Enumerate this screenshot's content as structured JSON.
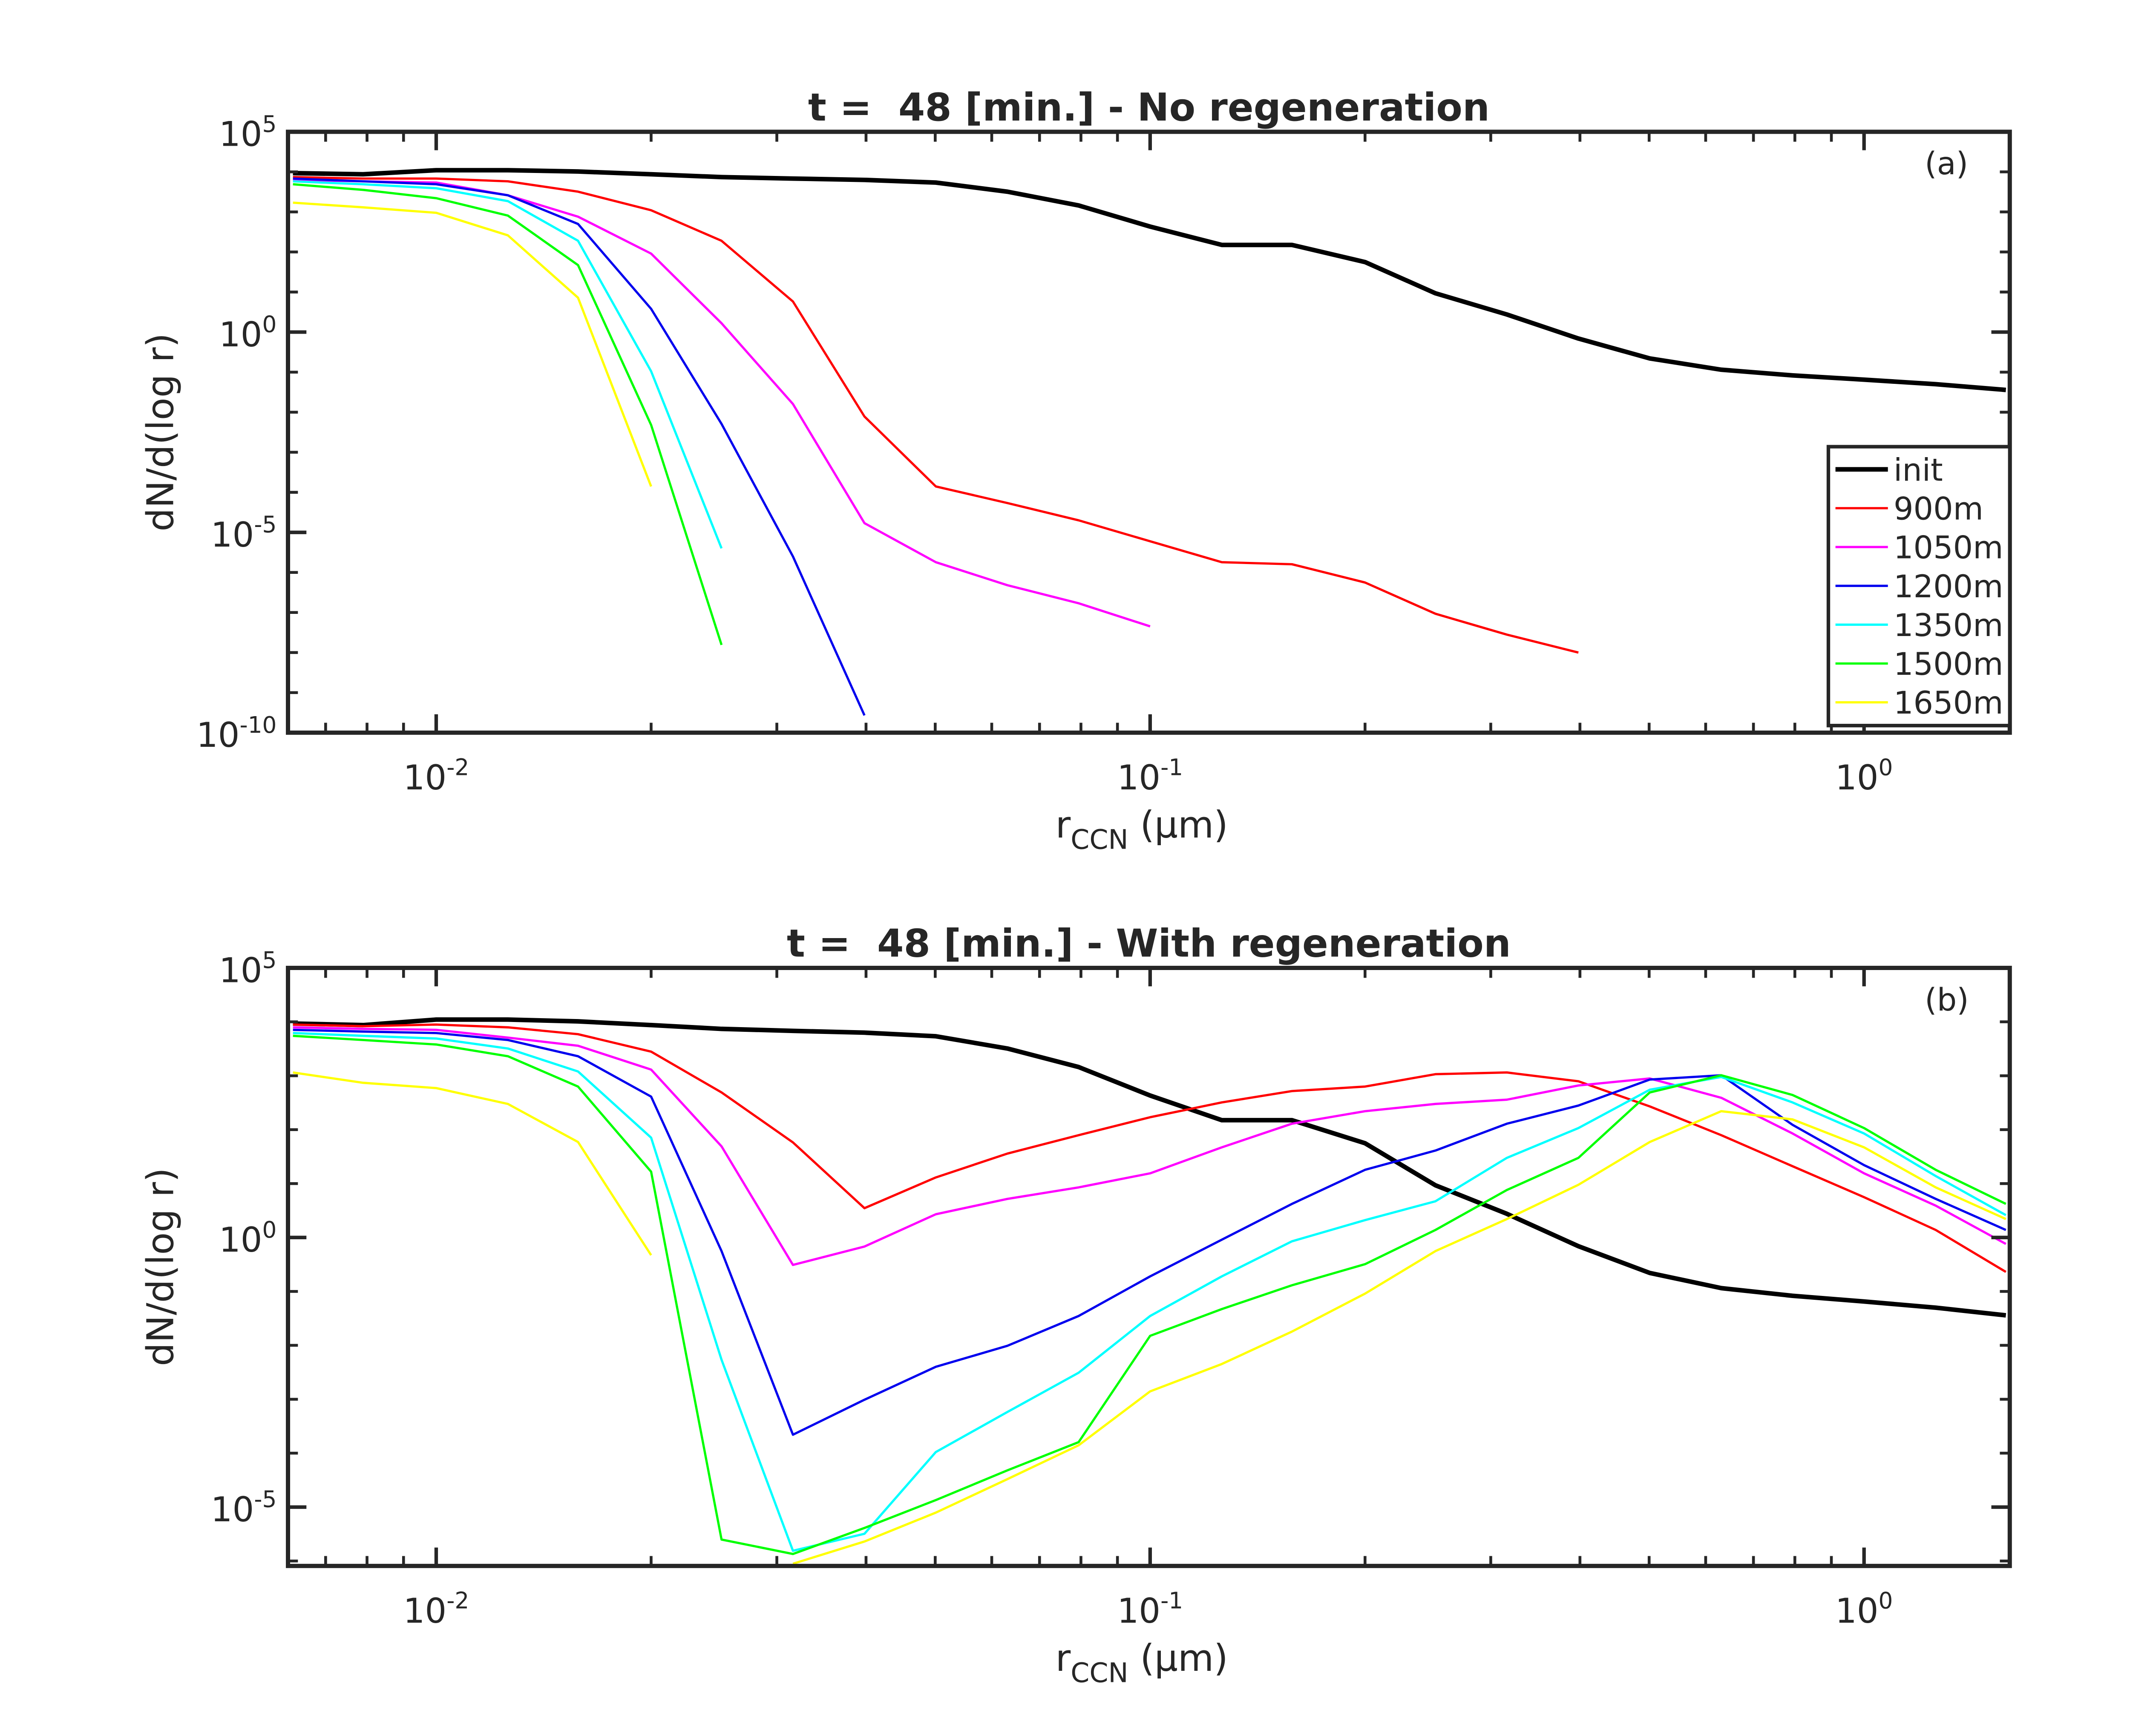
{
  "chart_data": [
    {
      "type": "line",
      "title": "t =  48 [min.] - No regeneration",
      "panel": "(a)",
      "xlabel": {
        "main": "r",
        "sub": "CCN",
        "rest": " (μm)"
      },
      "ylabel": "dN/d(log r)",
      "xscale": "log",
      "yscale": "log",
      "legend": "lower right",
      "xlim": [
        0.0062,
        1.6
      ],
      "xticks": [
        {
          "value": 0.01,
          "label": "10^-2"
        },
        {
          "value": 0.1,
          "label": "10^-1"
        },
        {
          "value": 1,
          "label": "10^0"
        }
      ],
      "ylim": [
        1e-10,
        100000
      ],
      "yticks": [
        {
          "value": 1e-10,
          "label": "10^-10"
        },
        {
          "value": 1e-05,
          "label": "10^-5"
        },
        {
          "value": 1,
          "label": "10^0"
        },
        {
          "value": 100000,
          "label": "10^5"
        }
      ],
      "x": [
        0.0063,
        0.0079,
        0.01,
        0.0126,
        0.0158,
        0.02,
        0.0251,
        0.0316,
        0.0398,
        0.0501,
        0.0631,
        0.0794,
        0.1,
        0.126,
        0.158,
        0.2,
        0.251,
        0.316,
        0.398,
        0.501,
        0.631,
        0.794,
        1,
        1.26,
        1.58
      ],
      "series": [
        {
          "name": "init",
          "color": "#000000",
          "values": [
            9300,
            8700,
            11000,
            11000,
            10200,
            8700,
            7400,
            6800,
            6300,
            5400,
            3200,
            1450,
            430,
            150,
            150,
            56,
            9.3,
            2.75,
            0.69,
            0.22,
            0.115,
            0.083,
            0.065,
            0.05,
            0.036
          ]
        },
        {
          "name": "900m",
          "color": "#ff0000",
          "values": [
            7400,
            6800,
            6800,
            5800,
            3200,
            1100,
            190,
            5.8,
            0.0078,
            0.00014,
            5.4e-05,
            2e-05,
            6e-06,
            1.8e-06,
            1.6e-06,
            5.6e-07,
            9.3e-08,
            2.8e-08,
            1e-08,
            null,
            null,
            null,
            null,
            null,
            null
          ]
        },
        {
          "name": "1050m",
          "color": "#ff00ff",
          "values": [
            6300,
            5800,
            5400,
            2600,
            760,
            91,
            1.66,
            0.016,
            1.7e-05,
            1.8e-06,
            4.8e-07,
            1.7e-07,
            4.5e-08,
            null,
            null,
            null,
            null,
            null,
            null,
            null,
            null,
            null,
            null,
            null,
            null
          ]
        },
        {
          "name": "1200m",
          "color": "#0000ee",
          "values": [
            6800,
            5800,
            4900,
            2600,
            500,
            3.8,
            0.0051,
            2.5e-06,
            2.7e-10,
            null,
            null,
            null,
            null,
            null,
            null,
            null,
            null,
            null,
            null,
            null,
            null,
            null,
            null,
            null,
            null
          ]
        },
        {
          "name": "1350m",
          "color": "#00ffff",
          "values": [
            5800,
            4900,
            3900,
            1860,
            190,
            0.105,
            4e-06,
            null,
            null,
            null,
            null,
            null,
            null,
            null,
            null,
            null,
            null,
            null,
            null,
            null,
            null,
            null,
            null,
            null,
            null
          ]
        },
        {
          "name": "1500m",
          "color": "#00ff00",
          "values": [
            4900,
            3550,
            2200,
            810,
            47,
            0.0048,
            1.55e-08,
            null,
            null,
            null,
            null,
            null,
            null,
            null,
            null,
            null,
            null,
            null,
            null,
            null,
            null,
            null,
            null,
            null,
            null
          ]
        },
        {
          "name": "1650m",
          "color": "#ffff00",
          "values": [
            1700,
            1300,
            950,
            260,
            7.2,
            0.00014,
            null,
            null,
            null,
            null,
            null,
            null,
            null,
            null,
            null,
            null,
            null,
            null,
            null,
            null,
            null,
            null,
            null,
            null,
            null
          ]
        }
      ]
    },
    {
      "type": "line",
      "title": "t =  48 [min.] - With regeneration",
      "panel": "(b)",
      "xlabel": {
        "main": "r",
        "sub": "CCN",
        "rest": " (μm)"
      },
      "ylabel": "dN/d(log r)",
      "xscale": "log",
      "yscale": "log",
      "xlim": [
        0.0062,
        1.6
      ],
      "xticks": [
        {
          "value": 0.01,
          "label": "10^-2"
        },
        {
          "value": 0.1,
          "label": "10^-1"
        },
        {
          "value": 1,
          "label": "10^0"
        }
      ],
      "ylim": [
        8.1e-07,
        100000
      ],
      "yticks": [
        {
          "value": 1e-05,
          "label": "10^-5"
        },
        {
          "value": 1,
          "label": "10^0"
        },
        {
          "value": 100000,
          "label": "10^5"
        }
      ],
      "x": [
        0.0063,
        0.0079,
        0.01,
        0.0126,
        0.0158,
        0.02,
        0.0251,
        0.0316,
        0.0398,
        0.0501,
        0.0631,
        0.0794,
        0.1,
        0.126,
        0.158,
        0.2,
        0.251,
        0.316,
        0.398,
        0.501,
        0.631,
        0.794,
        1,
        1.26,
        1.58
      ],
      "series": [
        {
          "name": "init",
          "color": "#000000",
          "values": [
            9300,
            8700,
            11000,
            11000,
            10200,
            8700,
            7400,
            6800,
            6300,
            5400,
            3200,
            1450,
            430,
            150,
            150,
            56,
            9.3,
            2.75,
            0.69,
            0.22,
            0.115,
            0.083,
            0.065,
            0.05,
            0.036
          ]
        },
        {
          "name": "900m",
          "color": "#ff0000",
          "values": [
            8900,
            8300,
            8900,
            7900,
            5900,
            2800,
            490,
            58,
            3.5,
            13,
            36,
            79,
            170,
            320,
            520,
            630,
            1070,
            1150,
            790,
            270,
            79,
            21,
            5.6,
            1.38,
            0.23
          ]
        },
        {
          "name": "1050m",
          "color": "#ff00ff",
          "values": [
            7900,
            7400,
            7100,
            5100,
            3600,
            1300,
            49,
            0.31,
            0.68,
            2.7,
            5.2,
            8.5,
            15.5,
            47,
            129,
            220,
            300,
            360,
            660,
            890,
            390,
            85,
            15.5,
            3.9,
            0.76
          ]
        },
        {
          "name": "1200m",
          "color": "#0000ee",
          "values": [
            7100,
            6600,
            6200,
            4600,
            2300,
            410,
            0.56,
            0.00022,
            0.00098,
            0.004,
            0.0098,
            0.035,
            0.19,
            0.91,
            4.2,
            18,
            41,
            129,
            280,
            850,
            1020,
            123,
            22,
            5.2,
            1.38
          ]
        },
        {
          "name": "1350m",
          "color": "#00ffff",
          "values": [
            6200,
            5500,
            4900,
            3200,
            1200,
            71,
            0.0054,
            1.55e-06,
            3.2e-06,
            0.000105,
            0.00058,
            0.0031,
            0.035,
            0.19,
            0.85,
            2.1,
            4.7,
            30,
            107,
            550,
            950,
            320,
            85,
            13.8,
            2.6
          ]
        },
        {
          "name": "1500m",
          "color": "#00ff00",
          "values": [
            5500,
            4600,
            3800,
            2300,
            630,
            16.6,
            2.5e-06,
            1.35e-06,
            4.1e-06,
            1.35e-05,
            4.8e-05,
            0.00016,
            0.015,
            0.047,
            0.13,
            0.32,
            1.38,
            7.6,
            30,
            490,
            1020,
            440,
            107,
            18,
            4.2
          ]
        },
        {
          "name": "1650m",
          "color": "#ffff00",
          "values": [
            1150,
            740,
            590,
            300,
            59,
            0.47,
            null,
            8.9e-07,
            2.3e-06,
            7.9e-06,
            3.3e-05,
            0.00014,
            0.0014,
            0.0045,
            0.018,
            0.091,
            0.56,
            2.2,
            9.5,
            59,
            220,
            155,
            47,
            8.5,
            2.2
          ]
        }
      ]
    }
  ]
}
